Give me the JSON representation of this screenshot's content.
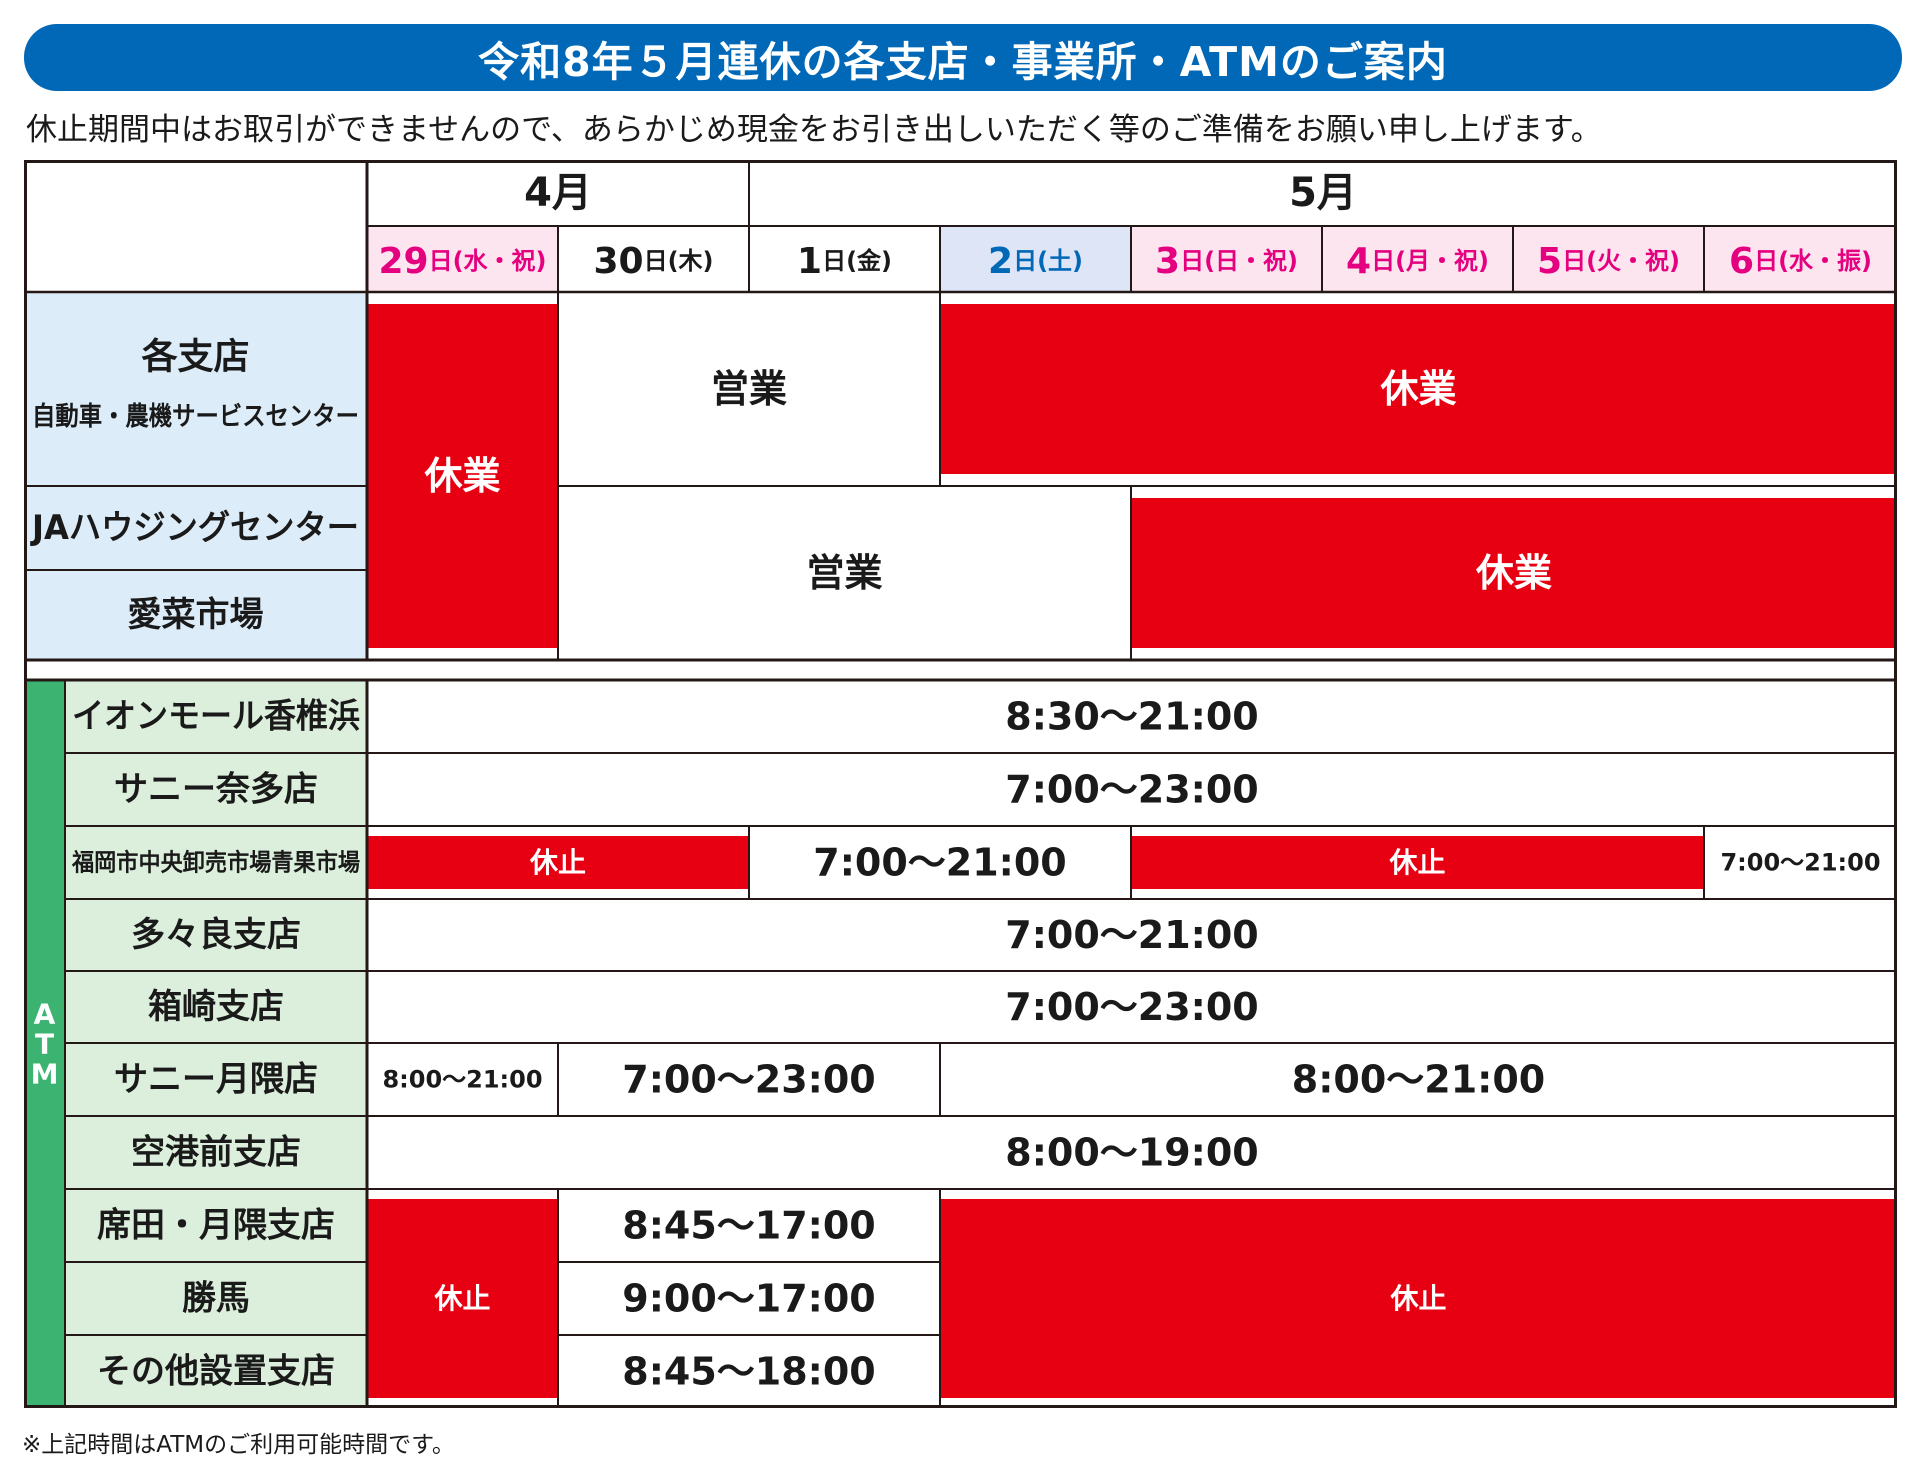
{
  "banner": {
    "title": "令和8年５月連休の各支店・事業所・ATMのご案内"
  },
  "notice": "休止期間中はお取引ができませんので、あらかじめ現金をお引き出しいただく等のご準備をお願い申し上げます。",
  "footnote": "※上記時間はATMのご利用可能時間です。",
  "colors": {
    "closed": "#e60012",
    "border": "#231815",
    "branch_label_bg": "#dcecf8",
    "atm_label_bg": "#dcefdc",
    "atm_strip": "#3cb371",
    "holiday_header_bg": "#fde5f0",
    "saturday_header_bg": "#dde5f6",
    "holiday_text": "#e4007f",
    "saturday_text": "#0068b7",
    "banner": "#0068b7"
  },
  "table": {
    "months": [
      {
        "label": "4月",
        "span": 2
      },
      {
        "label": "5月",
        "span": 6
      }
    ],
    "days": [
      {
        "num": "29",
        "unit": "日",
        "dow": "(水・祝)",
        "kind": "holiday"
      },
      {
        "num": "30",
        "unit": "日",
        "dow": "(木)",
        "kind": "weekday"
      },
      {
        "num": "1",
        "unit": "日",
        "dow": "(金)",
        "kind": "weekday"
      },
      {
        "num": "2",
        "unit": "日",
        "dow": "(土)",
        "kind": "saturday"
      },
      {
        "num": "3",
        "unit": "日",
        "dow": "(日・祝)",
        "kind": "holiday"
      },
      {
        "num": "4",
        "unit": "日",
        "dow": "(月・祝)",
        "kind": "holiday"
      },
      {
        "num": "5",
        "unit": "日",
        "dow": "(火・祝)",
        "kind": "holiday"
      },
      {
        "num": "6",
        "unit": "日",
        "dow": "(水・振)",
        "kind": "holiday"
      }
    ],
    "branch_rows": [
      {
        "label": "各支店",
        "sublabel": "自動車・農機サービスセンター"
      },
      {
        "label": "JAハウジングセンター"
      },
      {
        "label": "愛菜市場"
      }
    ],
    "branch_blocks": [
      {
        "text": "休業",
        "closed": true,
        "row_start": 0,
        "row_span": 3,
        "col_start": 0,
        "col_span": 1
      },
      {
        "text": "営業",
        "closed": false,
        "row_start": 0,
        "row_span": 1,
        "col_start": 1,
        "col_span": 2
      },
      {
        "text": "休業",
        "closed": true,
        "row_start": 0,
        "row_span": 1,
        "col_start": 3,
        "col_span": 5
      },
      {
        "text": "営業",
        "closed": false,
        "row_start": 1,
        "row_span": 2,
        "col_start": 1,
        "col_span": 3
      },
      {
        "text": "休業",
        "closed": true,
        "row_start": 1,
        "row_span": 2,
        "col_start": 4,
        "col_span": 4
      }
    ],
    "atm_label": "ATM",
    "atm_rows": [
      {
        "label": "イオンモール香椎浜"
      },
      {
        "label": "サニー奈多店"
      },
      {
        "label": "福岡市中央卸売市場青果市場",
        "small": true
      },
      {
        "label": "多々良支店"
      },
      {
        "label": "箱崎支店"
      },
      {
        "label": "サニー月隈店"
      },
      {
        "label": "空港前支店"
      },
      {
        "label": "席田・月隈支店"
      },
      {
        "label": "勝馬"
      },
      {
        "label": "その他設置支店"
      }
    ],
    "atm_blocks": [
      {
        "text": "8:30〜21:00",
        "closed": false,
        "row_start": 0,
        "row_span": 1,
        "col_start": 0,
        "col_span": 8
      },
      {
        "text": "7:00〜23:00",
        "closed": false,
        "row_start": 1,
        "row_span": 1,
        "col_start": 0,
        "col_span": 8
      },
      {
        "text": "休止",
        "closed": true,
        "row_start": 2,
        "row_span": 1,
        "col_start": 0,
        "col_span": 2
      },
      {
        "text": "7:00〜21:00",
        "closed": false,
        "row_start": 2,
        "row_span": 1,
        "col_start": 2,
        "col_span": 2
      },
      {
        "text": "休止",
        "closed": true,
        "row_start": 2,
        "row_span": 1,
        "col_start": 4,
        "col_span": 3
      },
      {
        "text": "7:00〜21:00",
        "closed": false,
        "small": true,
        "row_start": 2,
        "row_span": 1,
        "col_start": 7,
        "col_span": 1
      },
      {
        "text": "7:00〜21:00",
        "closed": false,
        "row_start": 3,
        "row_span": 1,
        "col_start": 0,
        "col_span": 8
      },
      {
        "text": "7:00〜23:00",
        "closed": false,
        "row_start": 4,
        "row_span": 1,
        "col_start": 0,
        "col_span": 8
      },
      {
        "text": "8:00〜21:00",
        "closed": false,
        "small": true,
        "row_start": 5,
        "row_span": 1,
        "col_start": 0,
        "col_span": 1
      },
      {
        "text": "7:00〜23:00",
        "closed": false,
        "row_start": 5,
        "row_span": 1,
        "col_start": 1,
        "col_span": 2
      },
      {
        "text": "8:00〜21:00",
        "closed": false,
        "row_start": 5,
        "row_span": 1,
        "col_start": 3,
        "col_span": 5
      },
      {
        "text": "8:00〜19:00",
        "closed": false,
        "row_start": 6,
        "row_span": 1,
        "col_start": 0,
        "col_span": 8
      },
      {
        "text": "休止",
        "closed": true,
        "row_start": 7,
        "row_span": 3,
        "col_start": 0,
        "col_span": 1
      },
      {
        "text": "8:45〜17:00",
        "closed": false,
        "row_start": 7,
        "row_span": 1,
        "col_start": 1,
        "col_span": 2
      },
      {
        "text": "9:00〜17:00",
        "closed": false,
        "row_start": 8,
        "row_span": 1,
        "col_start": 1,
        "col_span": 2
      },
      {
        "text": "8:45〜18:00",
        "closed": false,
        "row_start": 9,
        "row_span": 1,
        "col_start": 1,
        "col_span": 2
      },
      {
        "text": "休止",
        "closed": true,
        "row_start": 7,
        "row_span": 3,
        "col_start": 3,
        "col_span": 5
      }
    ]
  }
}
